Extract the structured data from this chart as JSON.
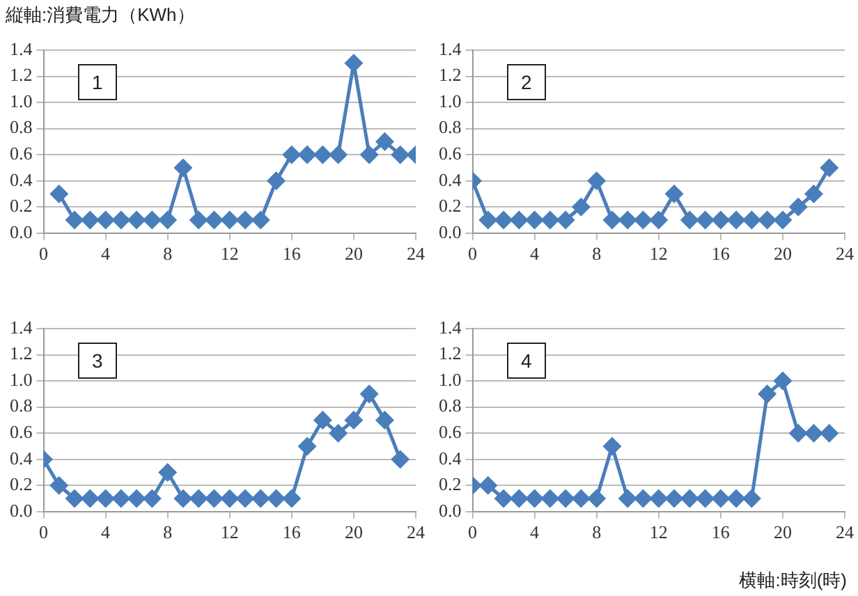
{
  "chart_data": [
    {
      "type": "line",
      "ylabel": "縦軸:消費電力（KWh）",
      "annotations": [
        "1"
      ],
      "x": [
        1,
        2,
        3,
        4,
        5,
        6,
        7,
        8,
        9,
        10,
        11,
        12,
        13,
        14,
        15,
        16,
        17,
        18,
        19,
        20,
        21,
        22,
        23,
        24
      ],
      "series": [
        {
          "color": "#4a7ebb",
          "values": [
            0.3,
            0.1,
            0.1,
            0.1,
            0.1,
            0.1,
            0.1,
            0.1,
            0.5,
            0.1,
            0.1,
            0.1,
            0.1,
            0.1,
            0.4,
            0.6,
            0.6,
            0.6,
            0.6,
            1.3,
            0.6,
            0.7,
            0.6,
            0.6
          ]
        }
      ],
      "xlim": [
        0,
        24
      ],
      "xticks": [
        0,
        4,
        8,
        12,
        16,
        20,
        24
      ],
      "ylim": [
        0,
        1.4
      ],
      "yticks": [
        {
          "value": 0,
          "label": "0.0"
        },
        {
          "value": 0.2,
          "label": "0.2"
        },
        {
          "value": 0.4,
          "label": "0.4"
        },
        {
          "value": 0.6,
          "label": "0.6"
        },
        {
          "value": 0.8,
          "label": "0.8"
        },
        {
          "value": 1,
          "label": "1.0"
        },
        {
          "value": 1.2,
          "label": "1.2"
        },
        {
          "value": 1.4,
          "label": "1.4"
        }
      ],
      "grid": "y",
      "marker": "diamond",
      "line_style": "solid"
    },
    {
      "type": "line",
      "annotations": [
        "2"
      ],
      "x": [
        0,
        1,
        2,
        3,
        4,
        5,
        6,
        7,
        8,
        9,
        10,
        11,
        12,
        13,
        14,
        15,
        16,
        17,
        18,
        19,
        20,
        21,
        22,
        23
      ],
      "series": [
        {
          "color": "#4a7ebb",
          "values": [
            0.4,
            0.1,
            0.1,
            0.1,
            0.1,
            0.1,
            0.1,
            0.2,
            0.4,
            0.1,
            0.1,
            0.1,
            0.1,
            0.3,
            0.1,
            0.1,
            0.1,
            0.1,
            0.1,
            0.1,
            0.1,
            0.2,
            0.3,
            0.5
          ]
        }
      ],
      "xlim": [
        0,
        24
      ],
      "xticks": [
        0,
        4,
        8,
        12,
        16,
        20,
        24
      ],
      "ylim": [
        0,
        1.4
      ],
      "yticks": [
        {
          "value": 0,
          "label": "0.0"
        },
        {
          "value": 0.2,
          "label": "0.2"
        },
        {
          "value": 0.4,
          "label": "0.4"
        },
        {
          "value": 0.6,
          "label": "0.6"
        },
        {
          "value": 0.8,
          "label": "0.8"
        },
        {
          "value": 1,
          "label": "1.0"
        },
        {
          "value": 1.2,
          "label": "1.2"
        },
        {
          "value": 1.4,
          "label": "1.4"
        }
      ],
      "grid": "y",
      "marker": "diamond",
      "line_style": "solid"
    },
    {
      "type": "line",
      "annotations": [
        "3"
      ],
      "x": [
        0,
        1,
        2,
        3,
        4,
        5,
        6,
        7,
        8,
        9,
        10,
        11,
        12,
        13,
        14,
        15,
        16,
        17,
        18,
        19,
        20,
        21,
        22,
        23
      ],
      "series": [
        {
          "color": "#4a7ebb",
          "values": [
            0.4,
            0.2,
            0.1,
            0.1,
            0.1,
            0.1,
            0.1,
            0.1,
            0.3,
            0.1,
            0.1,
            0.1,
            0.1,
            0.1,
            0.1,
            0.1,
            0.1,
            0.5,
            0.7,
            0.6,
            0.7,
            0.9,
            0.7,
            0.4
          ]
        }
      ],
      "xlim": [
        0,
        24
      ],
      "xticks": [
        0,
        4,
        8,
        12,
        16,
        20,
        24
      ],
      "ylim": [
        0,
        1.4
      ],
      "yticks": [
        {
          "value": 0,
          "label": "0.0"
        },
        {
          "value": 0.2,
          "label": "0.2"
        },
        {
          "value": 0.4,
          "label": "0.4"
        },
        {
          "value": 0.6,
          "label": "0.6"
        },
        {
          "value": 0.8,
          "label": "0.8"
        },
        {
          "value": 1,
          "label": "1.0"
        },
        {
          "value": 1.2,
          "label": "1.2"
        },
        {
          "value": 1.4,
          "label": "1.4"
        }
      ],
      "grid": "y",
      "marker": "diamond",
      "line_style": "solid"
    },
    {
      "type": "line",
      "xlabel": "横軸:時刻(時)",
      "annotations": [
        "4"
      ],
      "x": [
        0,
        1,
        2,
        3,
        4,
        5,
        6,
        7,
        8,
        9,
        10,
        11,
        12,
        13,
        14,
        15,
        16,
        17,
        18,
        19,
        20,
        21,
        22,
        23
      ],
      "series": [
        {
          "color": "#4a7ebb",
          "values": [
            0.2,
            0.2,
            0.1,
            0.1,
            0.1,
            0.1,
            0.1,
            0.1,
            0.1,
            0.5,
            0.1,
            0.1,
            0.1,
            0.1,
            0.1,
            0.1,
            0.1,
            0.1,
            0.1,
            0.9,
            1.0,
            0.6,
            0.6,
            0.6
          ]
        }
      ],
      "xlim": [
        0,
        24
      ],
      "xticks": [
        0,
        4,
        8,
        12,
        16,
        20,
        24
      ],
      "ylim": [
        0,
        1.4
      ],
      "yticks": [
        {
          "value": 0,
          "label": "0.0"
        },
        {
          "value": 0.2,
          "label": "0.2"
        },
        {
          "value": 0.4,
          "label": "0.4"
        },
        {
          "value": 0.6,
          "label": "0.6"
        },
        {
          "value": 0.8,
          "label": "0.8"
        },
        {
          "value": 1,
          "label": "1.0"
        },
        {
          "value": 1.2,
          "label": "1.2"
        },
        {
          "value": 1.4,
          "label": "1.4"
        }
      ],
      "grid": "y",
      "marker": "diamond",
      "line_style": "solid"
    }
  ]
}
